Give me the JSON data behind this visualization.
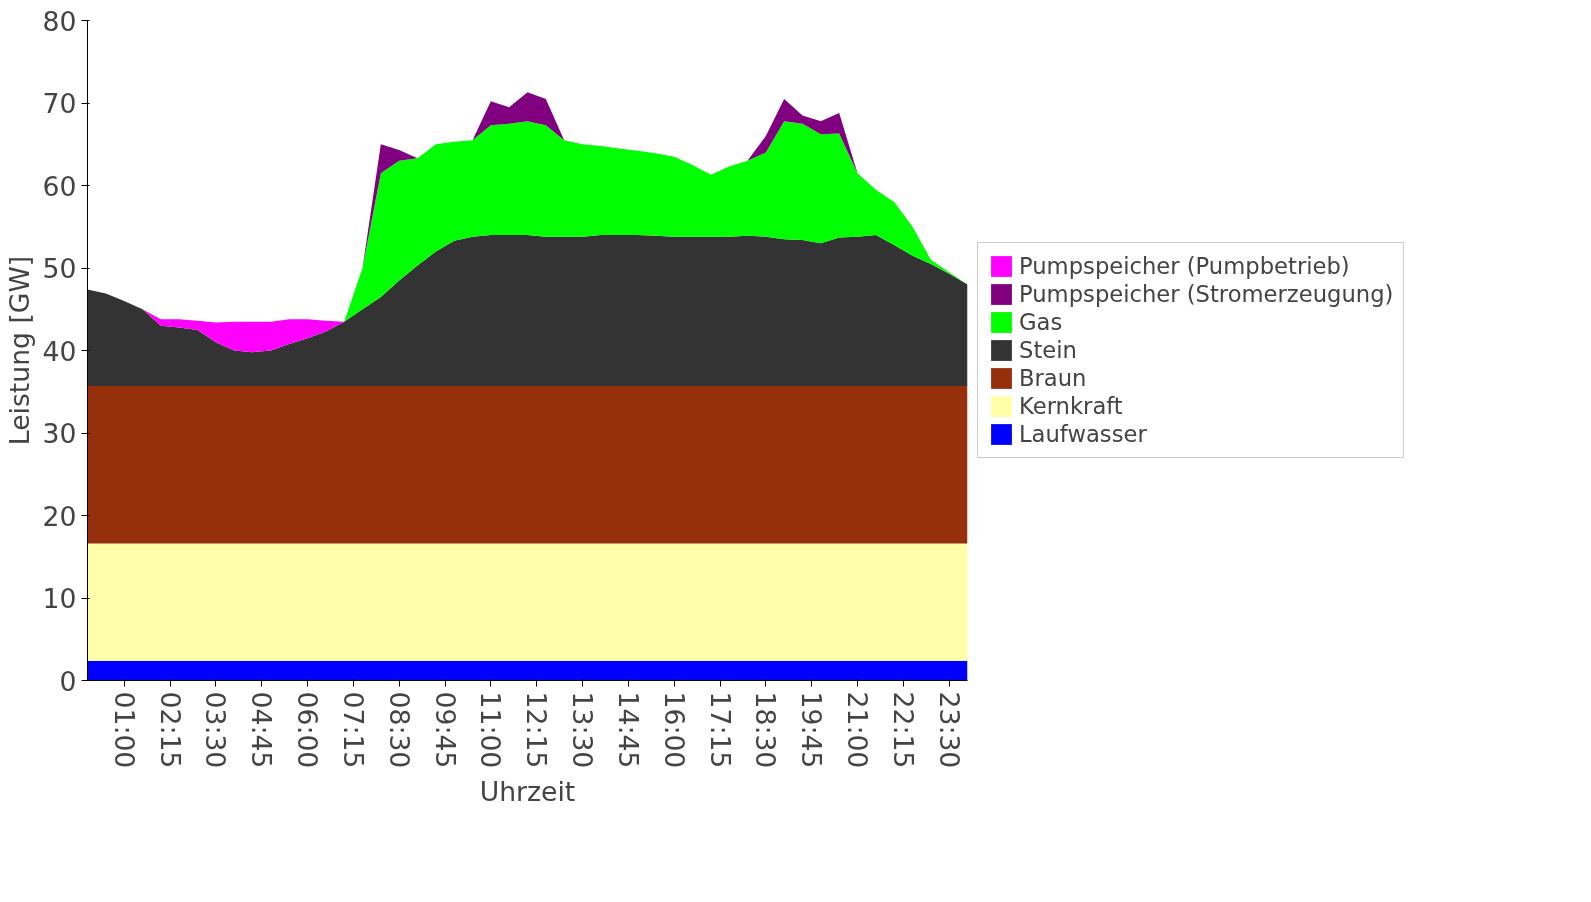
{
  "chart_data": {
    "type": "area",
    "stacked": true,
    "xlabel": "Uhrzeit",
    "ylabel": "Leistung [GW]",
    "x": [
      0,
      0.5,
      1,
      1.5,
      2,
      2.5,
      3,
      3.5,
      4,
      4.5,
      5,
      5.5,
      6,
      6.5,
      7,
      7.5,
      8,
      8.5,
      9,
      9.5,
      10,
      10.5,
      11,
      11.5,
      12,
      12.5,
      13,
      13.5,
      14,
      14.5,
      15,
      15.5,
      16,
      16.5,
      17,
      17.5,
      18,
      18.5,
      19,
      19.5,
      20,
      20.5,
      21,
      21.5,
      22,
      22.5,
      23,
      23.5,
      24
    ],
    "xlim": [
      0,
      24
    ],
    "xticks": [
      {
        "value": 1,
        "label": "01:00"
      },
      {
        "value": 2.25,
        "label": "02:15"
      },
      {
        "value": 3.5,
        "label": "03:30"
      },
      {
        "value": 4.75,
        "label": "04:45"
      },
      {
        "value": 6,
        "label": "06:00"
      },
      {
        "value": 7.25,
        "label": "07:15"
      },
      {
        "value": 8.5,
        "label": "08:30"
      },
      {
        "value": 9.75,
        "label": "09:45"
      },
      {
        "value": 11,
        "label": "11:00"
      },
      {
        "value": 12.25,
        "label": "12:15"
      },
      {
        "value": 13.5,
        "label": "13:30"
      },
      {
        "value": 14.75,
        "label": "14:45"
      },
      {
        "value": 16,
        "label": "16:00"
      },
      {
        "value": 17.25,
        "label": "17:15"
      },
      {
        "value": 18.5,
        "label": "18:30"
      },
      {
        "value": 19.75,
        "label": "19:45"
      },
      {
        "value": 21,
        "label": "21:00"
      },
      {
        "value": 22.25,
        "label": "22:15"
      },
      {
        "value": 23.5,
        "label": "23:30"
      }
    ],
    "ylim": [
      0,
      80
    ],
    "yticks": [
      0,
      10,
      20,
      30,
      40,
      50,
      60,
      70,
      80
    ],
    "grid": false,
    "legend": "right",
    "series": [
      {
        "name": "Laufwasser",
        "color": "#0000ff",
        "values": [
          2.4,
          2.4,
          2.4,
          2.4,
          2.4,
          2.4,
          2.4,
          2.4,
          2.4,
          2.4,
          2.4,
          2.4,
          2.4,
          2.4,
          2.4,
          2.4,
          2.4,
          2.4,
          2.4,
          2.4,
          2.4,
          2.4,
          2.4,
          2.4,
          2.4,
          2.4,
          2.4,
          2.4,
          2.4,
          2.4,
          2.4,
          2.4,
          2.4,
          2.4,
          2.4,
          2.4,
          2.4,
          2.4,
          2.4,
          2.4,
          2.4,
          2.4,
          2.4,
          2.4,
          2.4,
          2.4,
          2.4,
          2.4,
          2.4
        ]
      },
      {
        "name": "Kernkraft",
        "color": "#ffffaa",
        "values": [
          14.2,
          14.2,
          14.2,
          14.2,
          14.2,
          14.2,
          14.2,
          14.2,
          14.2,
          14.2,
          14.2,
          14.2,
          14.2,
          14.2,
          14.2,
          14.2,
          14.2,
          14.2,
          14.2,
          14.2,
          14.2,
          14.2,
          14.2,
          14.2,
          14.2,
          14.2,
          14.2,
          14.2,
          14.2,
          14.2,
          14.2,
          14.2,
          14.2,
          14.2,
          14.2,
          14.2,
          14.2,
          14.2,
          14.2,
          14.2,
          14.2,
          14.2,
          14.2,
          14.2,
          14.2,
          14.2,
          14.2,
          14.2,
          14.2
        ]
      },
      {
        "name": "Braun",
        "color": "#962f0c",
        "values": [
          19.1,
          19.1,
          19.1,
          19.1,
          19.1,
          19.1,
          19.1,
          19.1,
          19.1,
          19.1,
          19.1,
          19.1,
          19.1,
          19.1,
          19.1,
          19.1,
          19.1,
          19.1,
          19.1,
          19.1,
          19.1,
          19.1,
          19.1,
          19.1,
          19.1,
          19.1,
          19.1,
          19.1,
          19.1,
          19.1,
          19.1,
          19.1,
          19.1,
          19.1,
          19.1,
          19.1,
          19.1,
          19.1,
          19.1,
          19.1,
          19.1,
          19.1,
          19.1,
          19.1,
          19.1,
          19.1,
          19.1,
          19.1,
          19.1
        ]
      },
      {
        "name": "Stein",
        "color": "#333333",
        "values": [
          11.7,
          11.2,
          10.3,
          9.3,
          7.3,
          7.1,
          6.8,
          5.3,
          4.3,
          4.1,
          4.3,
          5.1,
          5.8,
          6.6,
          7.8,
          9.3,
          10.8,
          12.8,
          14.6,
          16.3,
          17.6,
          18.1,
          18.3,
          18.3,
          18.3,
          18.1,
          18.1,
          18.1,
          18.3,
          18.3,
          18.3,
          18.2,
          18.1,
          18.1,
          18.1,
          18.1,
          18.2,
          18.1,
          17.8,
          17.7,
          17.3,
          18.0,
          18.1,
          18.3,
          17.1,
          15.8,
          14.8,
          13.6,
          12.3
        ]
      },
      {
        "name": "Gas",
        "color": "#00ff00",
        "values": [
          0,
          0,
          0,
          0,
          0,
          0,
          0,
          0,
          0,
          0,
          0,
          0,
          0,
          0,
          0,
          5.0,
          15.0,
          14.5,
          13.0,
          13.0,
          12.0,
          11.7,
          13.3,
          13.5,
          13.8,
          13.5,
          11.7,
          11.2,
          10.8,
          10.5,
          10.2,
          10.0,
          9.7,
          8.7,
          7.5,
          8.5,
          9.1,
          10.2,
          14.3,
          14.1,
          13.2,
          12.6,
          7.7,
          5.5,
          5.2,
          3.5,
          0.5,
          0.2,
          0
        ]
      },
      {
        "name": "Pumpspeicher (Stromerzeugung)",
        "color": "#800080",
        "values": [
          0,
          0,
          0,
          0,
          0,
          0,
          0,
          0,
          0,
          0,
          0,
          0,
          0,
          0,
          0,
          0,
          3.5,
          1.3,
          0,
          0,
          0,
          0,
          2.9,
          2.0,
          3.5,
          3.2,
          0,
          0,
          0,
          0,
          0,
          0,
          0,
          0,
          0,
          0,
          0,
          2.0,
          2.7,
          1.0,
          1.6,
          2.5,
          0,
          0,
          0,
          0,
          0,
          0,
          0
        ]
      },
      {
        "name": "Pumpspeicher (Pumpbetrieb)",
        "color": "#ff00ff",
        "values": [
          null,
          null,
          null,
          0,
          0.8,
          1.0,
          1.1,
          2.4,
          3.5,
          3.7,
          3.5,
          3.0,
          2.3,
          1.3,
          0,
          null,
          null,
          null,
          null,
          null,
          null,
          null,
          null,
          null,
          null,
          null,
          null,
          null,
          null,
          null,
          null,
          null,
          null,
          null,
          null,
          null,
          null,
          null,
          null,
          null,
          null,
          null,
          null,
          null,
          null,
          null,
          null,
          null,
          null
        ]
      }
    ]
  }
}
